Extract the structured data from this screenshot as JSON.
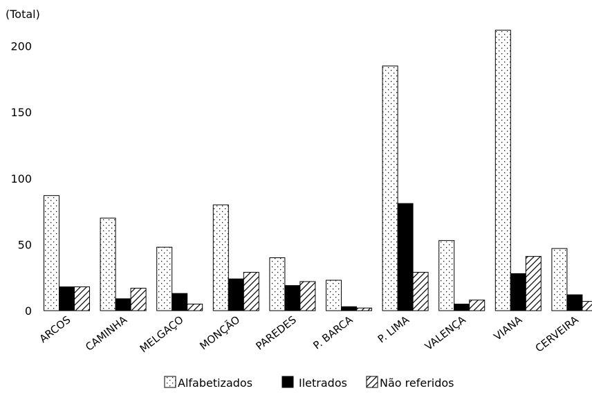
{
  "chart_data": {
    "type": "bar",
    "title": "",
    "xlabel": "",
    "ylabel": "(Total)",
    "ylim": [
      0,
      215
    ],
    "yticks": [
      0,
      50,
      100,
      150,
      200
    ],
    "grid": false,
    "legend_position": "bottom",
    "categories": [
      "ARCOS",
      "CAMINHA",
      "MELGAÇO",
      "MONÇÃO",
      "PAREDES",
      "P. BARCA",
      "P. LIMA",
      "VALENÇA",
      "VIANA",
      "CERVEIRA"
    ],
    "series": [
      {
        "name": "Alfabetizados",
        "fill": "dotted",
        "values": [
          87,
          70,
          48,
          80,
          40,
          23,
          185,
          53,
          212,
          47
        ]
      },
      {
        "name": "Iletrados",
        "fill": "solid",
        "values": [
          18,
          9,
          13,
          24,
          19,
          3,
          81,
          5,
          28,
          12
        ]
      },
      {
        "name": "Não referidos",
        "fill": "hatched",
        "values": [
          18,
          17,
          5,
          29,
          22,
          2,
          29,
          8,
          41,
          7
        ]
      }
    ],
    "colors": {
      "ink": "#000000",
      "background": "#ffffff"
    }
  }
}
